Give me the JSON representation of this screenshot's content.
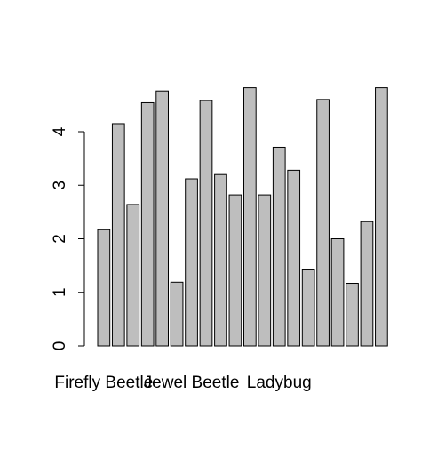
{
  "chart_data": {
    "type": "bar",
    "categories": [
      "Firefly Beetle",
      "",
      "",
      "",
      "",
      "",
      "Jewel Beetle",
      "",
      "",
      "",
      "",
      "",
      "Ladybug",
      "",
      "",
      "",
      "",
      "",
      "",
      ""
    ],
    "values": [
      2.17,
      4.15,
      2.64,
      4.54,
      4.76,
      1.19,
      3.12,
      4.58,
      3.2,
      2.82,
      4.82,
      2.82,
      3.71,
      3.28,
      1.42,
      4.6,
      2.0,
      1.17,
      2.32,
      4.82
    ],
    "ylim": [
      0,
      4.82
    ],
    "yticks": [
      "0",
      "1",
      "2",
      "3",
      "4"
    ],
    "bar_color": "#bebebe",
    "bar_border_color": "#000000",
    "grid": false,
    "title": "",
    "xlabel": "",
    "ylabel": ""
  }
}
